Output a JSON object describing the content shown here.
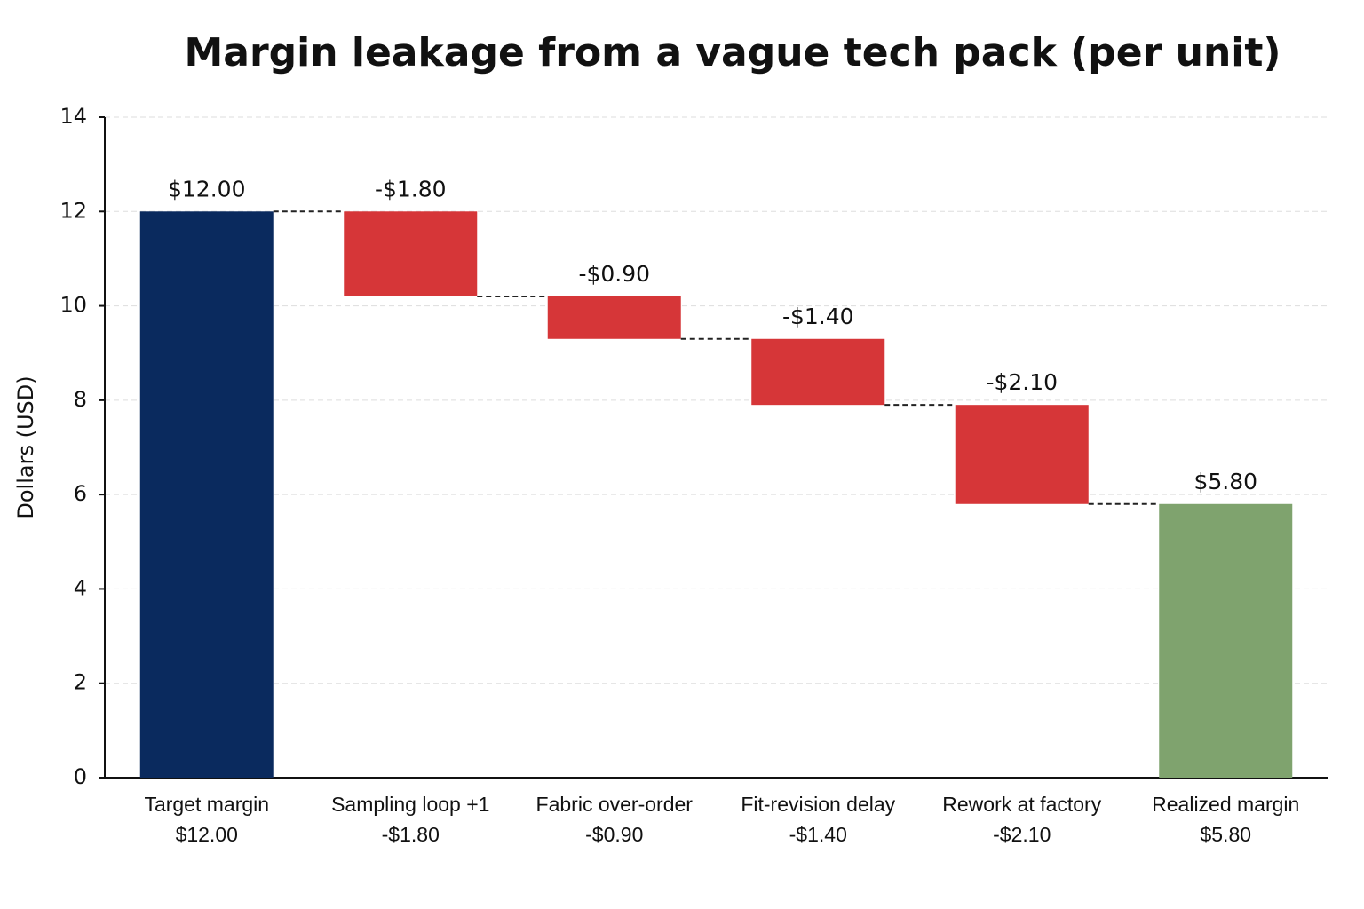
{
  "chart_data": {
    "type": "waterfall",
    "title": "Margin leakage from a vague tech pack (per unit)",
    "y_label": "Dollars (USD)",
    "categories": [
      "Target margin",
      "Sampling loop +1",
      "Fabric over-order",
      "Fit-revision delay",
      "Rework at factory",
      "Realized margin"
    ],
    "values": [
      12,
      -1.8,
      -0.9,
      -1.4,
      -2.1,
      5.8
    ],
    "value_labels": [
      "$12.00",
      "-$1.80",
      "-$0.90",
      "-$1.40",
      "-$2.10",
      "$5.80"
    ],
    "measures": [
      "absolute",
      "relative",
      "relative",
      "relative",
      "relative",
      "total"
    ],
    "colors": [
      "#0a2a5e",
      "#d63638",
      "#d63638",
      "#d63638",
      "#d63638",
      "#7fa36e"
    ],
    "ylim": [
      0,
      14
    ],
    "yticks": [
      0,
      2,
      4,
      6,
      8,
      10,
      12,
      14
    ],
    "grid": true
  }
}
